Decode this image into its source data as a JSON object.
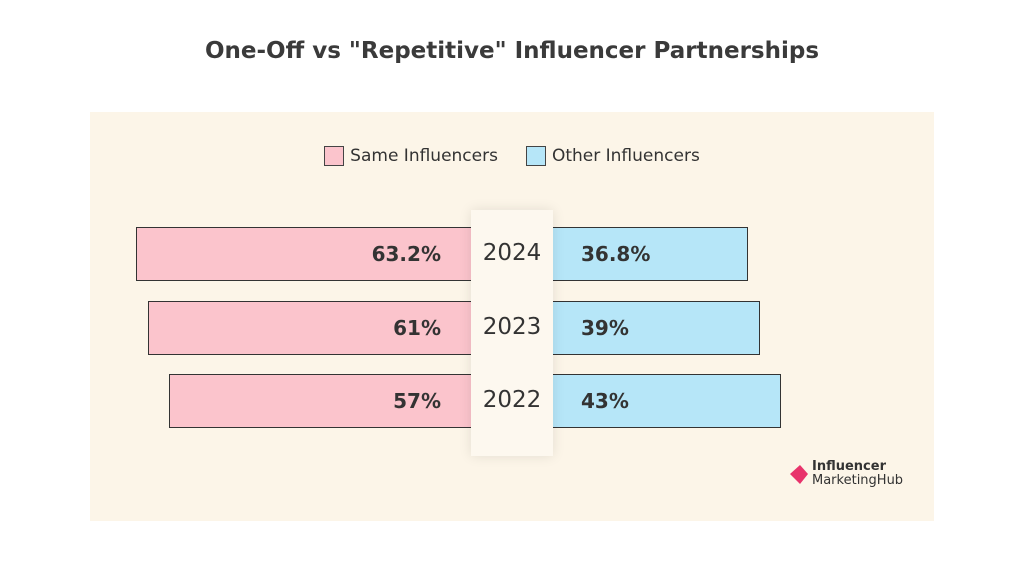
{
  "chart_data": {
    "type": "bar",
    "title": "One-Off vs \"Repetitive\" Influencer Partnerships",
    "orientation": "horizontal-diverging",
    "categories": [
      "2024",
      "2023",
      "2022"
    ],
    "series": [
      {
        "name": "Same Influencers",
        "values": [
          63.2,
          61,
          57
        ],
        "labels": [
          "63.2%",
          "61%",
          "57%"
        ],
        "color": "#fbc4cc"
      },
      {
        "name": "Other Influencers",
        "values": [
          36.8,
          39,
          43
        ],
        "labels": [
          "36.8%",
          "39%",
          "43%"
        ],
        "color": "#b6e6f8"
      }
    ],
    "legend": "top-center",
    "grid": false
  },
  "logo": {
    "line1": "Influencer",
    "line2": "MarketingHub",
    "color": "#e8336b"
  }
}
